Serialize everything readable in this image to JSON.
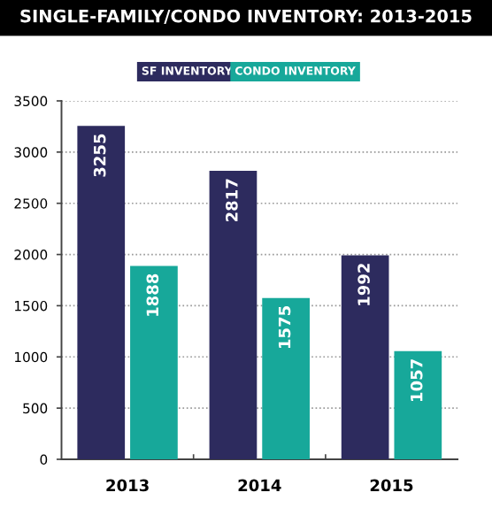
{
  "chart_data": {
    "type": "bar",
    "title": "SINGLE-FAMILY/CONDO INVENTORY: 2013-2015",
    "categories": [
      "2013",
      "2014",
      "2015"
    ],
    "series": [
      {
        "name": "SF INVENTORY",
        "color": "#2d2b5e",
        "values": [
          3255,
          2817,
          1992
        ]
      },
      {
        "name": "CONDO INVENTORY",
        "color": "#17a89a",
        "values": [
          1888,
          1575,
          1057
        ]
      }
    ],
    "ylim": [
      0,
      3500
    ],
    "yticks": [
      0,
      500,
      1000,
      1500,
      2000,
      2500,
      3000,
      3500
    ],
    "grid": "y",
    "legend": "top",
    "data_labels": true
  }
}
